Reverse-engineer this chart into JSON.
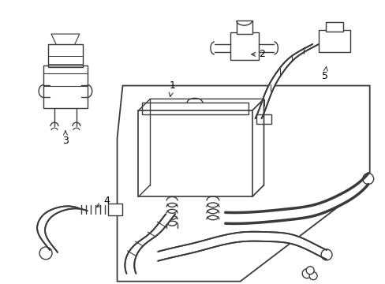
{
  "background_color": "#ffffff",
  "line_color": "#3a3a3a",
  "label_color": "#000000",
  "fig_w": 4.89,
  "fig_h": 3.6,
  "dpi": 100
}
